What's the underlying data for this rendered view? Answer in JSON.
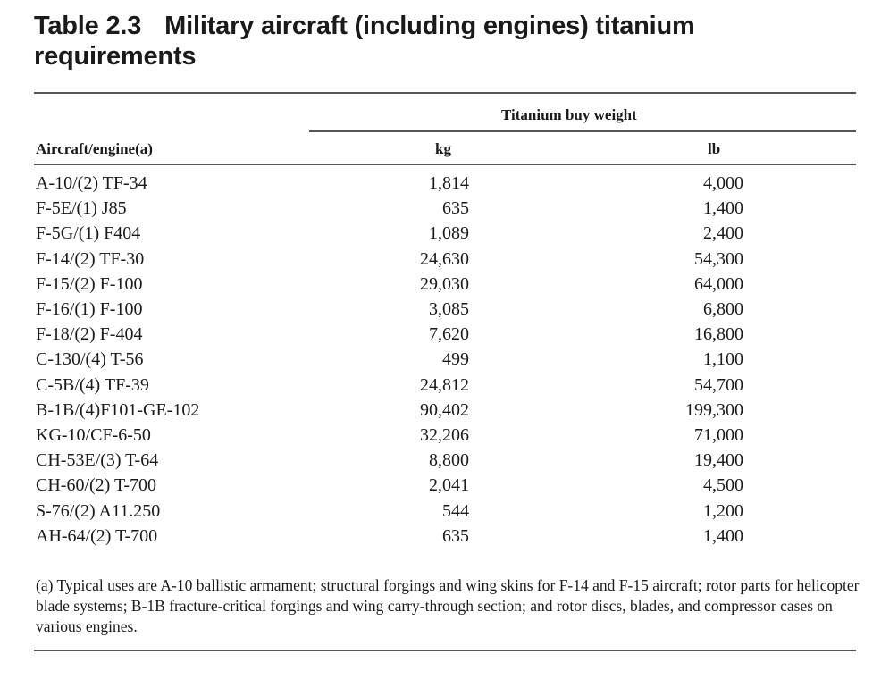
{
  "title": {
    "number": "Table 2.3",
    "text": "Military aircraft (including engines) titanium requirements"
  },
  "table": {
    "group_header": "Titanium buy weight",
    "col_aircraft": "Aircraft/engine(a)",
    "col_kg": "kg",
    "col_lb": "lb",
    "rows": [
      {
        "aircraft": "A-10/(2) TF-34",
        "kg": "1,814",
        "lb": "4,000"
      },
      {
        "aircraft": "F-5E/(1) J85",
        "kg": "635",
        "lb": "1,400"
      },
      {
        "aircraft": "F-5G/(1) F404",
        "kg": "1,089",
        "lb": "2,400"
      },
      {
        "aircraft": "F-14/(2) TF-30",
        "kg": "24,630",
        "lb": "54,300"
      },
      {
        "aircraft": "F-15/(2) F-100",
        "kg": "29,030",
        "lb": "64,000"
      },
      {
        "aircraft": "F-16/(1) F-100",
        "kg": "3,085",
        "lb": "6,800"
      },
      {
        "aircraft": "F-18/(2) F-404",
        "kg": "7,620",
        "lb": "16,800"
      },
      {
        "aircraft": "C-130/(4) T-56",
        "kg": "499",
        "lb": "1,100"
      },
      {
        "aircraft": "C-5B/(4) TF-39",
        "kg": "24,812",
        "lb": "54,700"
      },
      {
        "aircraft": "B-1B/(4)F101-GE-102",
        "kg": "90,402",
        "lb": "199,300"
      },
      {
        "aircraft": "KG-10/CF-6-50",
        "kg": "32,206",
        "lb": "71,000"
      },
      {
        "aircraft": "CH-53E/(3) T-64",
        "kg": "8,800",
        "lb": "19,400"
      },
      {
        "aircraft": "CH-60/(2) T-700",
        "kg": "2,041",
        "lb": "4,500"
      },
      {
        "aircraft": "S-76/(2) A11.250",
        "kg": "544",
        "lb": "1,200"
      },
      {
        "aircraft": "AH-64/(2) T-700",
        "kg": "635",
        "lb": "1,400"
      }
    ]
  },
  "footnote": "(a) Typical uses are A-10 ballistic armament; structural forgings and wing skins for F-14 and F-15 aircraft; rotor parts for helicopter blade systems; B-1B fracture-critical forgings and wing carry-through section; and rotor discs, blades, and compressor cases on various engines."
}
